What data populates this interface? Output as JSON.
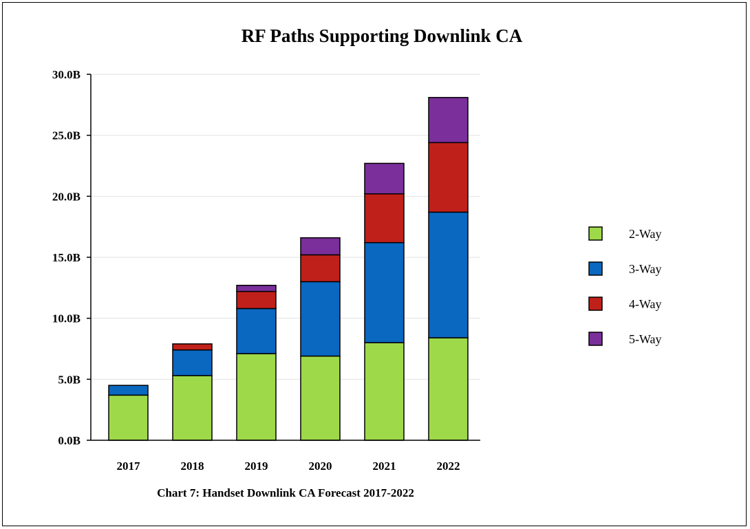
{
  "chart_data": {
    "type": "bar",
    "stacked": true,
    "title": "RF Paths Supporting Downlink CA",
    "xlabel": "Chart 7: Handset Downlink CA Forecast  2017-2022",
    "ylabel": "",
    "ylim": [
      0,
      30
    ],
    "yticks": [
      "0.0B",
      "5.0B",
      "10.0B",
      "15.0B",
      "20.0B",
      "25.0B",
      "30.0B"
    ],
    "categories": [
      "2017",
      "2018",
      "2019",
      "2020",
      "2021",
      "2022"
    ],
    "series": [
      {
        "name": "2-Way",
        "color": "#9ed94a",
        "values": [
          3.7,
          5.3,
          7.1,
          6.9,
          8.0,
          8.4
        ]
      },
      {
        "name": "3-Way",
        "color": "#0a68c0",
        "values": [
          0.8,
          2.1,
          3.7,
          6.1,
          8.2,
          10.3
        ]
      },
      {
        "name": "4-Way",
        "color": "#c0201a",
        "values": [
          0.0,
          0.5,
          1.4,
          2.2,
          4.0,
          5.7
        ]
      },
      {
        "name": "5-Way",
        "color": "#7a2f9a",
        "values": [
          0.0,
          0.0,
          0.5,
          1.4,
          2.5,
          3.7
        ]
      }
    ],
    "grid": true,
    "legend_position": "right"
  }
}
